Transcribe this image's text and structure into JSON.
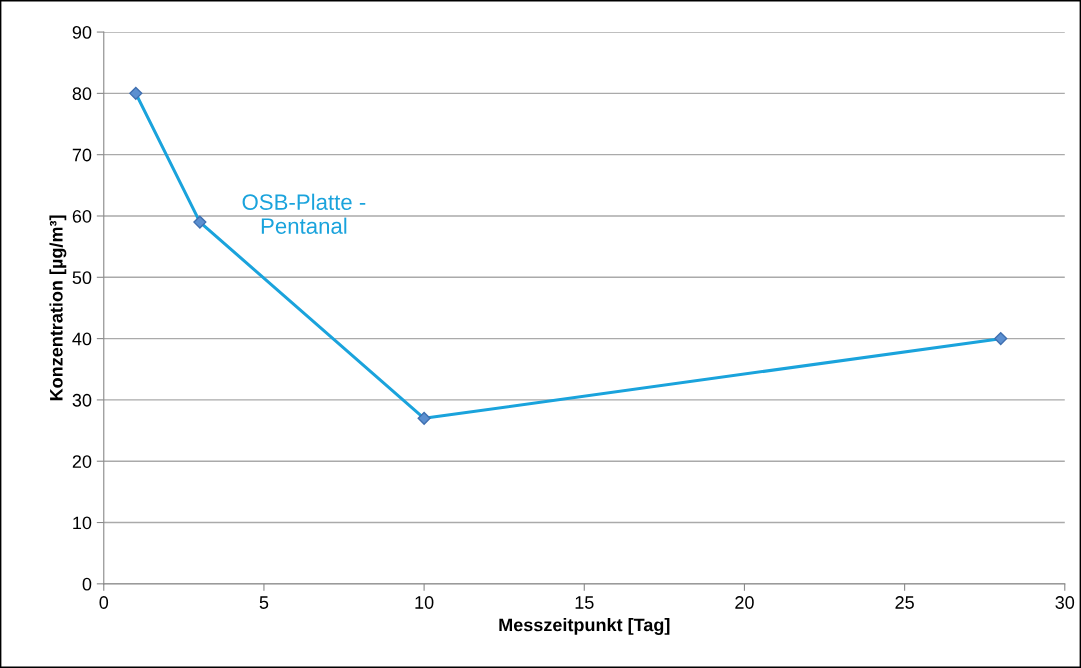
{
  "chart_data": {
    "type": "line",
    "xlabel": "Messzeitpunkt [Tag]",
    "ylabel": "Konzentration [µg/m³]",
    "x": [
      1,
      3,
      10,
      28
    ],
    "series": [
      {
        "name": "OSB-Platte -\nPentanal",
        "color": "#1aa3dc",
        "values": [
          80,
          59,
          27,
          40
        ]
      }
    ],
    "xlim": [
      0,
      30
    ],
    "xticks": [
      0,
      5,
      10,
      15,
      20,
      25,
      30
    ],
    "ylim": [
      0,
      90
    ],
    "yticks": [
      0,
      10,
      20,
      30,
      40,
      50,
      60,
      70,
      80,
      90
    ],
    "grid": "y",
    "legend": false,
    "marker": "diamond",
    "line_style": "solid"
  }
}
